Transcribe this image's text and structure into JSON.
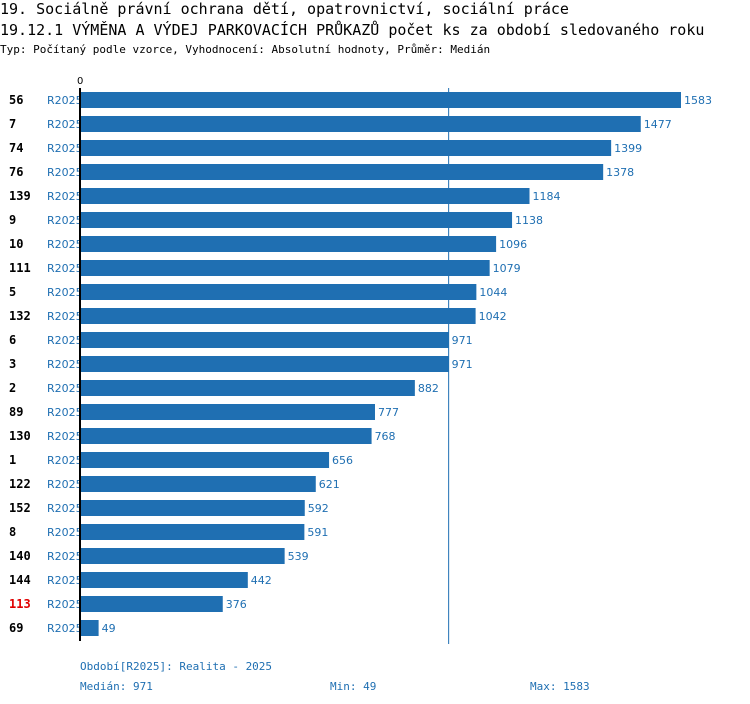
{
  "header": {
    "title_line1": "19. Sociálně právní ochrana dětí, opatrovnictví, sociální práce",
    "title_line2": "19.12.1 VÝMĚNA A VÝDEJ PARKOVACÍCH PRŮKAZŮ počet ks za období sledovaného roku",
    "subtitle": "Typ: Počítaný podle vzorce, Vyhodnocení: Absolutní hodnoty, Průměr: Medián"
  },
  "chart_data": {
    "type": "bar",
    "orientation": "horizontal",
    "title": "19.12.1 VÝMĚNA A VÝDEJ PARKOVACÍCH PRŮKAZŮ počet ks za období sledovaného roku",
    "x_axis_zero_label": "0",
    "xlim": [
      0,
      1583
    ],
    "median": 971,
    "bar_color": "#1f6fb2",
    "highlight_color": "#e00000",
    "period_label": "R2025",
    "categories": [
      "56",
      "7",
      "74",
      "76",
      "139",
      "9",
      "10",
      "111",
      "5",
      "132",
      "6",
      "3",
      "2",
      "89",
      "130",
      "1",
      "122",
      "152",
      "8",
      "140",
      "144",
      "113",
      "69"
    ],
    "values": [
      1583,
      1477,
      1399,
      1378,
      1184,
      1138,
      1096,
      1079,
      1044,
      1042,
      971,
      971,
      882,
      777,
      768,
      656,
      621,
      592,
      591,
      539,
      442,
      376,
      49
    ],
    "highlighted": [
      "113"
    ]
  },
  "footer": {
    "period": "Období[R2025]: Realita - 2025",
    "median": "Medián: 971",
    "min": "Min: 49",
    "max": "Max: 1583"
  }
}
